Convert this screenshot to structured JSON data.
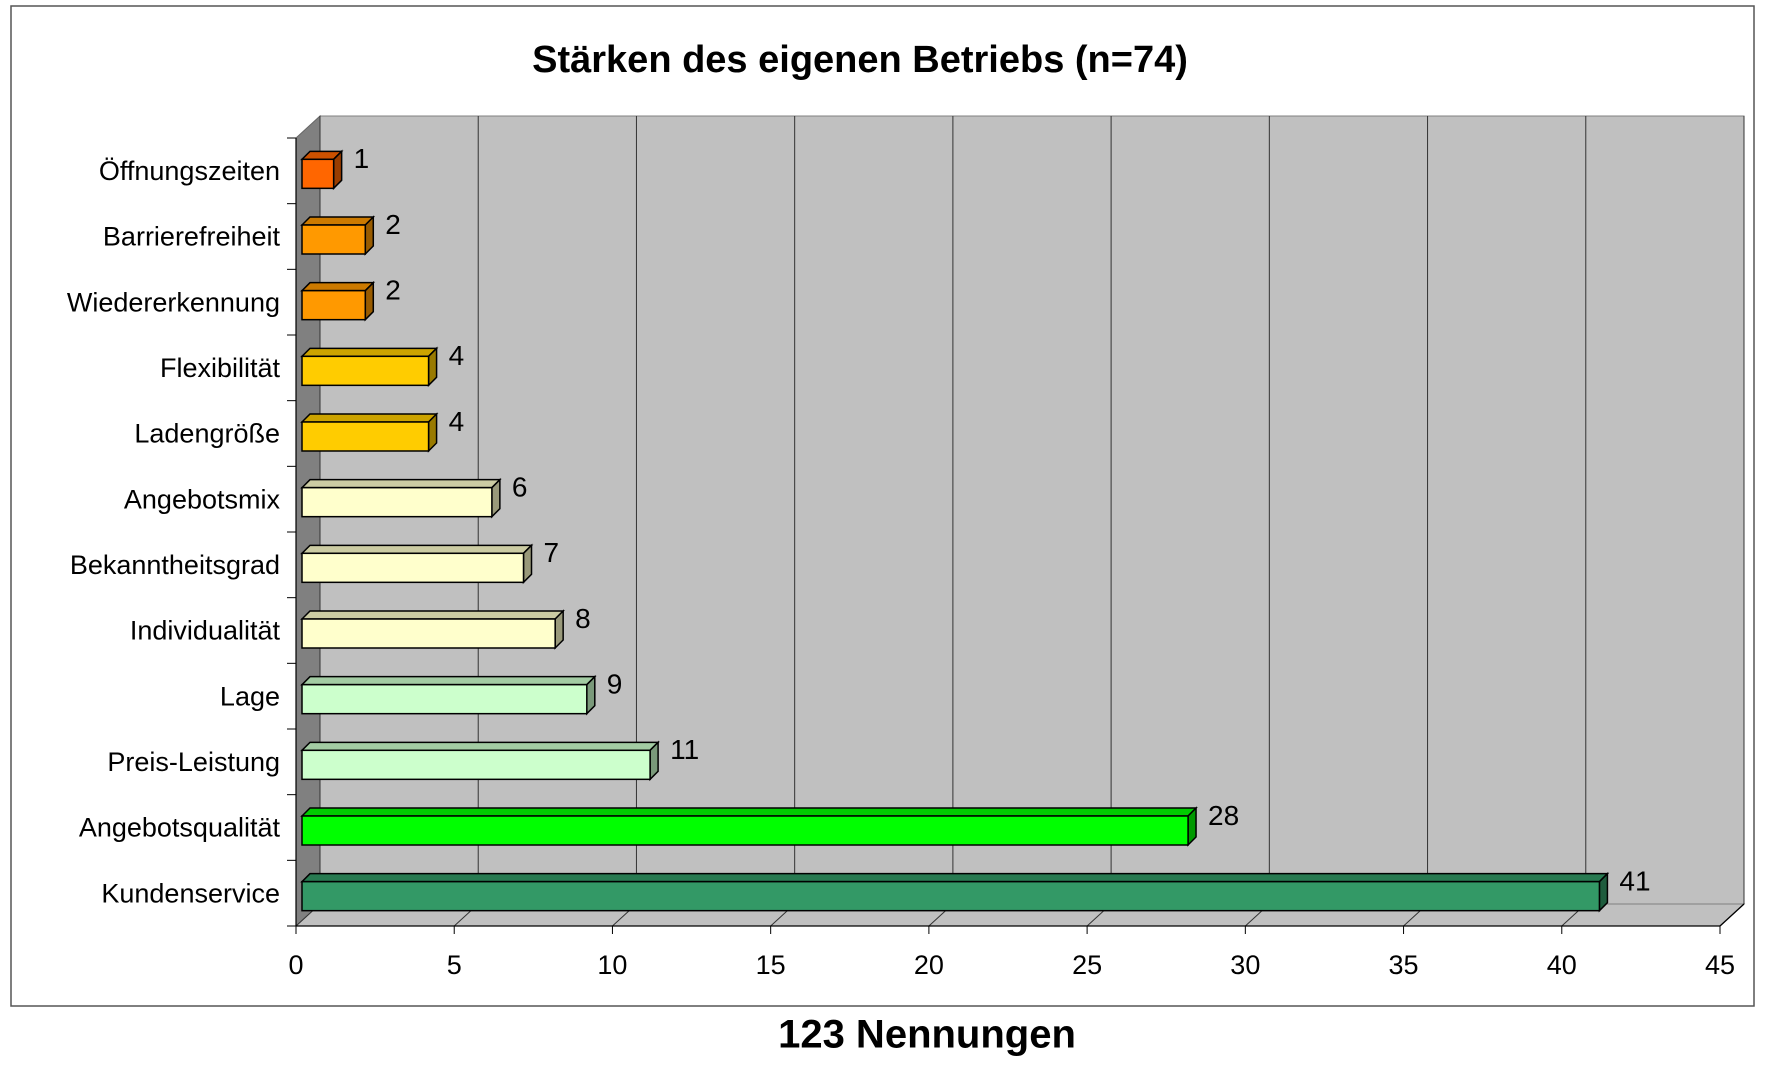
{
  "chart_data": {
    "type": "bar3d_horizontal",
    "title": "Stärken des eigenen Betriebs (n=74)",
    "xlabel": "123 Nennungen",
    "categories": [
      "Öffnungszeiten",
      "Barrierefreiheit",
      "Wiedererkennung",
      "Flexibilität",
      "Ladengröße",
      "Angebotsmix",
      "Bekanntheitsgrad",
      "Individualität",
      "Lage",
      "Preis-Leistung",
      "Angebotsqualität",
      "Kundenservice"
    ],
    "values": [
      1,
      2,
      2,
      4,
      4,
      6,
      7,
      8,
      9,
      11,
      28,
      41
    ],
    "colors": [
      "#ff6600",
      "#ff9900",
      "#ff9900",
      "#ffcc00",
      "#ffcc00",
      "#ffffcc",
      "#ffffcc",
      "#ffffcc",
      "#ccffcc",
      "#ccffcc",
      "#00ff00",
      "#339966"
    ],
    "xlim": [
      0,
      45
    ],
    "xticks": [
      0,
      5,
      10,
      15,
      20,
      25,
      30,
      35,
      40,
      45
    ],
    "grid": true
  }
}
